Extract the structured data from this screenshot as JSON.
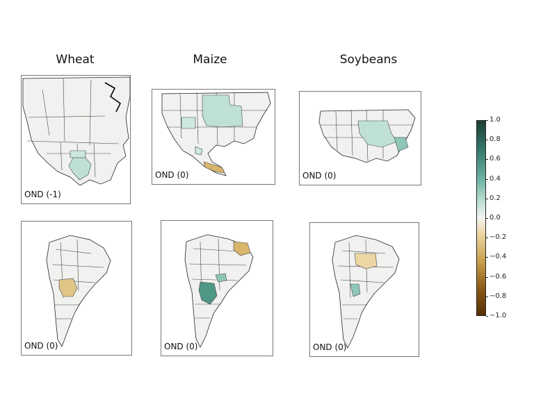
{
  "columns": [
    "Wheat",
    "Maize",
    "Soybeans"
  ],
  "panels": {
    "wheat_na": "OND (-1)",
    "maize_na": "OND (0)",
    "soy_na": "OND (0)",
    "wheat_sa": "OND (0)",
    "maize_sa": "OND (0)",
    "soy_sa": "OND (0)"
  },
  "colorbar": {
    "ticks": [
      "1.0",
      "0.8",
      "0.6",
      "0.4",
      "0.2",
      "0.0",
      "−0.2",
      "−0.4",
      "−0.6",
      "−0.8",
      "−1.0"
    ],
    "colors": {
      "pos_high": "#1f3d35",
      "pos_mid": "#6fb3a3",
      "zero": "#f4f4f2",
      "neg_mid": "#c9a24f",
      "neg_high": "#543005"
    }
  }
}
